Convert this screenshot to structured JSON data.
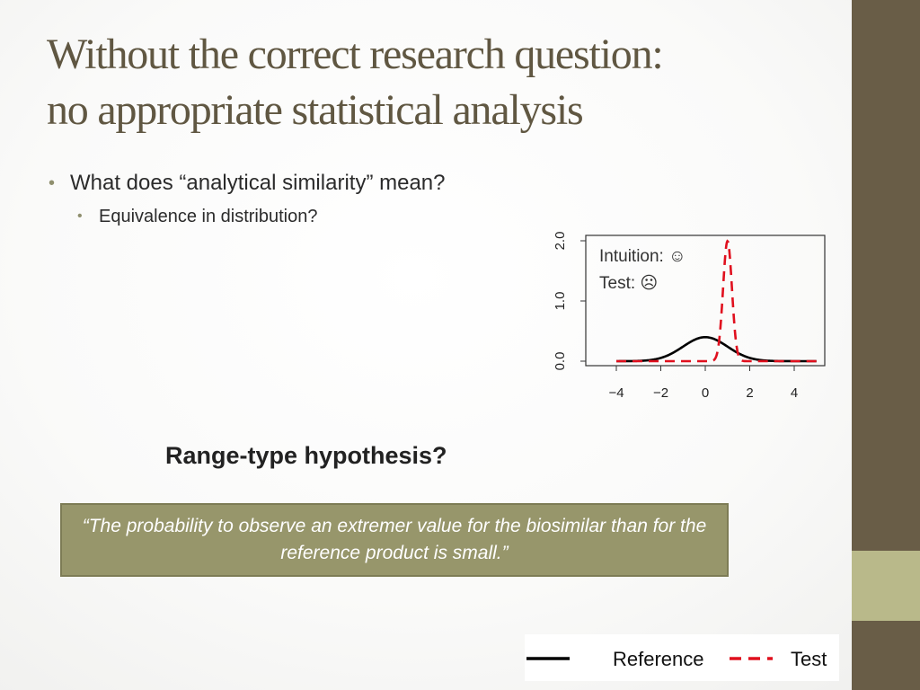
{
  "slide": {
    "title_line1": "Without the correct research question:",
    "title_line2": "no appropriate statistical analysis",
    "bullet1": "What does “analytical similarity” mean?",
    "bullet1_sub": "Equivalence in distribution?",
    "hypothesis": "Range-type hypothesis?",
    "quote": "“The probability to observe an extremer value for the biosimilar than for the reference product is small.”",
    "accent_color": "#695d47",
    "quote_box_color": "#97966b"
  },
  "chart_data": {
    "type": "line",
    "xlim": [
      -5,
      5
    ],
    "ylim": [
      0,
      2.1
    ],
    "x_ticks": [
      "−4",
      "−2",
      "0",
      "2",
      "4"
    ],
    "y_ticks": [
      "0.0",
      "1.0",
      "2.0"
    ],
    "annotations": [
      "Intuition: ☺",
      "Test: ☹"
    ],
    "legend_placement": "bottom-right",
    "series": [
      {
        "name": "Reference",
        "style": "solid",
        "color": "#000000",
        "distribution": "normal",
        "mean": 0,
        "sd": 1
      },
      {
        "name": "Test",
        "style": "dashed",
        "color": "#e0101e",
        "distribution": "normal",
        "mean": 1,
        "sd": 0.2
      }
    ]
  }
}
